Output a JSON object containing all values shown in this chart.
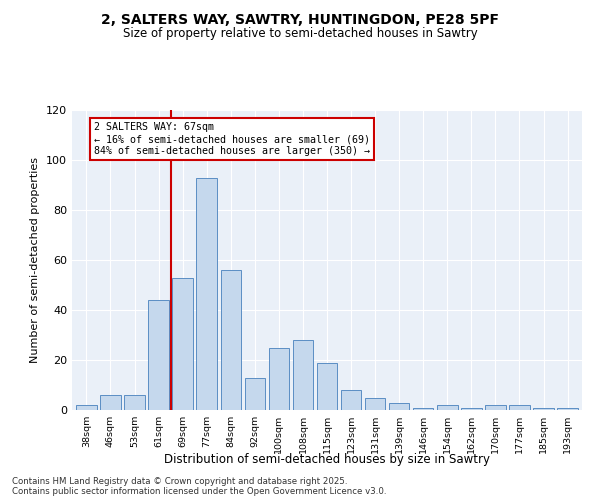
{
  "title1": "2, SALTERS WAY, SAWTRY, HUNTINGDON, PE28 5PF",
  "title2": "Size of property relative to semi-detached houses in Sawtry",
  "xlabel": "Distribution of semi-detached houses by size in Sawtry",
  "ylabel": "Number of semi-detached properties",
  "categories": [
    "38sqm",
    "46sqm",
    "53sqm",
    "61sqm",
    "69sqm",
    "77sqm",
    "84sqm",
    "92sqm",
    "100sqm",
    "108sqm",
    "115sqm",
    "123sqm",
    "131sqm",
    "139sqm",
    "146sqm",
    "154sqm",
    "162sqm",
    "170sqm",
    "177sqm",
    "185sqm",
    "193sqm"
  ],
  "values": [
    2,
    6,
    6,
    44,
    53,
    93,
    56,
    13,
    25,
    28,
    19,
    8,
    5,
    3,
    1,
    2,
    1,
    2,
    2,
    1,
    1
  ],
  "bar_color": "#c5d8ed",
  "bar_edge_color": "#5b8ec4",
  "vline_x_index": 4,
  "vline_color": "#cc0000",
  "annotation_title": "2 SALTERS WAY: 67sqm",
  "annotation_line1": "← 16% of semi-detached houses are smaller (69)",
  "annotation_line2": "84% of semi-detached houses are larger (350) →",
  "annotation_box_color": "#cc0000",
  "ylim": [
    0,
    120
  ],
  "yticks": [
    0,
    20,
    40,
    60,
    80,
    100,
    120
  ],
  "footer1": "Contains HM Land Registry data © Crown copyright and database right 2025.",
  "footer2": "Contains public sector information licensed under the Open Government Licence v3.0.",
  "bg_color": "#eaf0f8"
}
